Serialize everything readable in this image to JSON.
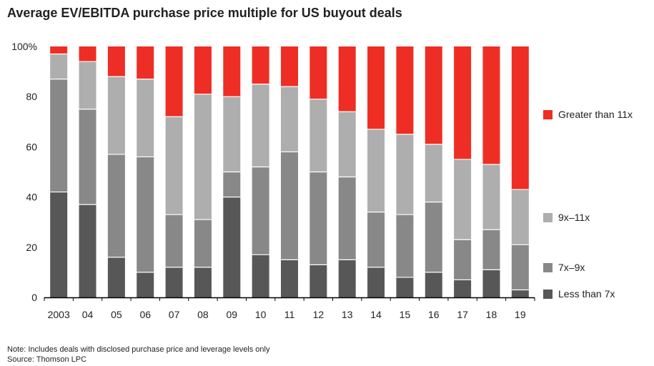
{
  "chart_data": {
    "type": "bar",
    "stacked": true,
    "title": "Average EV/EBITDA purchase price multiple for US buyout deals",
    "xlabel": "",
    "ylabel": "",
    "ylim": [
      0,
      100
    ],
    "yticks": [
      "0",
      "20",
      "40",
      "60",
      "80",
      "100%"
    ],
    "categories": [
      "2003",
      "04",
      "05",
      "06",
      "07",
      "08",
      "09",
      "10",
      "11",
      "12",
      "13",
      "14",
      "15",
      "16",
      "17",
      "18",
      "19"
    ],
    "series": [
      {
        "name": "Less than 7x",
        "color": "#575757",
        "values": [
          42,
          37,
          16,
          10,
          12,
          12,
          40,
          17,
          15,
          13,
          15,
          12,
          8,
          10,
          7,
          11,
          3
        ]
      },
      {
        "name": "7x–9x",
        "color": "#888888",
        "values": [
          45,
          38,
          41,
          46,
          21,
          19,
          10,
          35,
          43,
          37,
          33,
          22,
          25,
          28,
          16,
          16,
          18
        ]
      },
      {
        "name": "9x–11x",
        "color": "#aeaeae",
        "values": [
          10,
          19,
          31,
          31,
          39,
          50,
          30,
          33,
          26,
          29,
          26,
          33,
          32,
          23,
          32,
          26,
          22
        ]
      },
      {
        "name": "Greater than 11x",
        "color": "#ee2e24",
        "values": [
          3,
          6,
          12,
          13,
          28,
          19,
          20,
          15,
          16,
          21,
          26,
          33,
          35,
          39,
          45,
          47,
          57
        ]
      }
    ],
    "legend_position": "right"
  },
  "legend": [
    {
      "label": "Greater than 11x",
      "color": "#ee2e24"
    },
    {
      "label": "9x–11x",
      "color": "#aeaeae"
    },
    {
      "label": "7x–9x",
      "color": "#888888"
    },
    {
      "label": "Less than 7x",
      "color": "#575757"
    }
  ],
  "notes": {
    "note": "Note: Includes deals with disclosed purchase price and leverage levels only",
    "source": "Source: Thomson LPC"
  }
}
